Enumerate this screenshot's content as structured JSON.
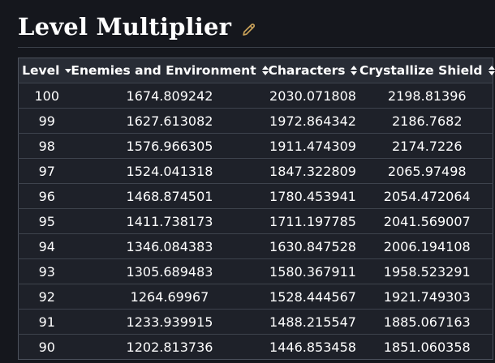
{
  "page": {
    "title": "Level Multiplier"
  },
  "colors": {
    "accent_gold": "#c9a25a",
    "page_background": "#15171d",
    "table_header_background": "#282c35",
    "table_cell_background": "#1e2129",
    "border": "#3e434d",
    "text": "#ffffff"
  },
  "icons": {
    "edit": "pencil-icon",
    "level_sort": "sort-descending-icon",
    "column_sort": "sort-both-icon"
  },
  "table": {
    "column_keys": [
      "level",
      "enemies-environment",
      "characters",
      "crystallize-shield"
    ],
    "columns": [
      {
        "label": "Level",
        "sort_state": "descending"
      },
      {
        "label": "Enemies and Environment",
        "sort_state": "sortable"
      },
      {
        "label": "Characters",
        "sort_state": "sortable"
      },
      {
        "label": "Crystallize Shield",
        "sort_state": "sortable"
      }
    ],
    "rows": [
      [
        "100",
        "1674.809242",
        "2030.071808",
        "2198.81396"
      ],
      [
        "99",
        "1627.613082",
        "1972.864342",
        "2186.7682"
      ],
      [
        "98",
        "1576.966305",
        "1911.474309",
        "2174.7226"
      ],
      [
        "97",
        "1524.041318",
        "1847.322809",
        "2065.97498"
      ],
      [
        "96",
        "1468.874501",
        "1780.453941",
        "2054.472064"
      ],
      [
        "95",
        "1411.738173",
        "1711.197785",
        "2041.569007"
      ],
      [
        "94",
        "1346.084383",
        "1630.847528",
        "2006.194108"
      ],
      [
        "93",
        "1305.689483",
        "1580.367911",
        "1958.523291"
      ],
      [
        "92",
        "1264.69967",
        "1528.444567",
        "1921.749303"
      ],
      [
        "91",
        "1233.939915",
        "1488.215547",
        "1885.067163"
      ],
      [
        "90",
        "1202.813736",
        "1446.853458",
        "1851.060358"
      ]
    ]
  }
}
